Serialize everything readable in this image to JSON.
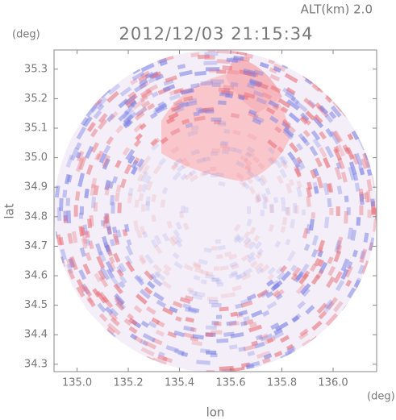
{
  "chart_data": {
    "type": "radar-ppi",
    "title": "2012/12/03 21:15:34",
    "annotation": "ALT(km)  2.0",
    "xlabel": "lon",
    "ylabel": "lat",
    "xunit": "(deg)",
    "yunit": "(deg)",
    "xlim": [
      134.91,
      136.17
    ],
    "ylim": [
      34.275,
      35.365
    ],
    "xticks": [
      {
        "value": 135,
        "label": "135.0"
      },
      135.2,
      135.4,
      135.6,
      135.8,
      {
        "value": 136,
        "label": "136.0"
      }
    ],
    "yticks": [
      {
        "value": 34.3,
        "label": "34.3"
      },
      34.4,
      34.5,
      34.6,
      34.7,
      34.8,
      34.9,
      {
        "value": 35,
        "label": "35.0"
      },
      35.1,
      35.2,
      35.3
    ]
  }
}
